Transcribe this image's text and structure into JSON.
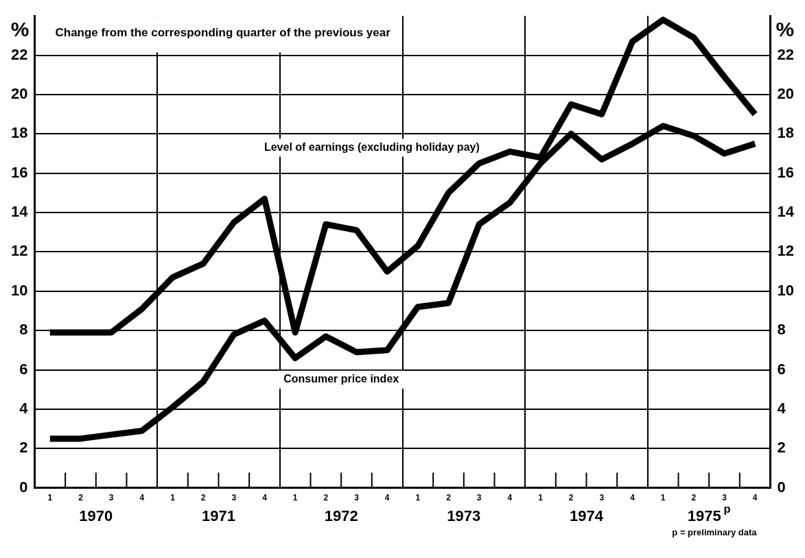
{
  "chart_data": {
    "type": "line",
    "title": "Change from the corresponding quarter of the previous year",
    "ylabel": "%",
    "y2label": "%",
    "categories": [
      "1",
      "2",
      "3",
      "4",
      "1",
      "2",
      "3",
      "4",
      "1",
      "2",
      "3",
      "4",
      "1",
      "2",
      "3",
      "4",
      "1",
      "2",
      "3",
      "4",
      "1",
      "2",
      "3",
      "4"
    ],
    "series": [
      {
        "name": "Level of earnings (excluding holiday pay)",
        "color": "#000000",
        "values": [
          7.9,
          7.9,
          7.9,
          9.1,
          10.7,
          11.4,
          13.5,
          14.7,
          7.9,
          13.4,
          13.1,
          11.0,
          12.3,
          15.0,
          16.5,
          17.1,
          16.8,
          19.5,
          19.0,
          22.7,
          23.8,
          22.9,
          20.9,
          19.0
        ]
      },
      {
        "name": "Consumer price index",
        "color": "#000000",
        "values": [
          2.5,
          2.5,
          2.7,
          2.9,
          4.1,
          5.4,
          7.8,
          8.5,
          6.6,
          7.7,
          6.9,
          7.0,
          9.2,
          9.4,
          13.4,
          14.5,
          16.5,
          18.0,
          16.7,
          17.5,
          18.4,
          17.9,
          17.0,
          17.5
        ]
      }
    ],
    "ylim": [
      0,
      24
    ],
    "yticks": [
      0,
      2,
      4,
      6,
      8,
      10,
      12,
      14,
      16,
      18,
      20,
      22
    ],
    "y2lim": [
      0,
      24
    ],
    "y2ticks": [
      0,
      2,
      4,
      6,
      8,
      10,
      12,
      14,
      16,
      18,
      20,
      22
    ],
    "grid": true,
    "legend": false,
    "marker": "none",
    "line_style": "solid",
    "annotations": [
      "1970",
      "1971",
      "1972",
      "1973",
      "1974",
      "1975$^{p}$",
      "p = preliminary data"
    ]
  }
}
